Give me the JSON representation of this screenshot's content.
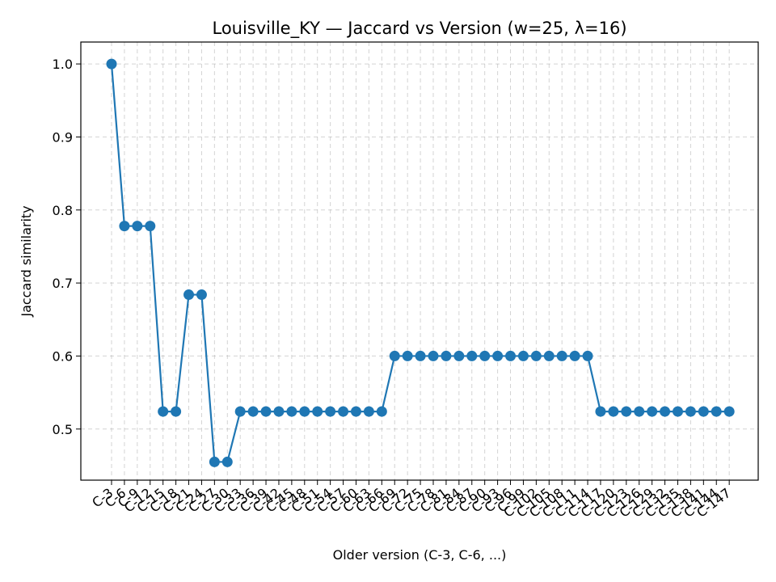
{
  "chart_data": {
    "type": "line",
    "title": "Louisville_KY — Jaccard vs Version (w=25, λ=16)",
    "xlabel": "Older version (C-3, C-6, ...)",
    "ylabel": "Jaccard similarity",
    "grid": true,
    "ylim": [
      0.43,
      1.03
    ],
    "yticks": [
      0.5,
      0.6,
      0.7,
      0.8,
      0.9,
      1.0
    ],
    "ytick_labels": [
      "0.5",
      "0.6",
      "0.7",
      "0.8",
      "0.9",
      "1.0"
    ],
    "color": "#1f77b4",
    "categories": [
      "C-3",
      "C-6",
      "C-9",
      "C-12",
      "C-15",
      "C-18",
      "C-21",
      "C-24",
      "C-27",
      "C-30",
      "C-33",
      "C-36",
      "C-39",
      "C-42",
      "C-45",
      "C-48",
      "C-51",
      "C-54",
      "C-57",
      "C-60",
      "C-63",
      "C-66",
      "C-69",
      "C-72",
      "C-75",
      "C-78",
      "C-81",
      "C-84",
      "C-87",
      "C-90",
      "C-93",
      "C-96",
      "C-99",
      "C-102",
      "C-105",
      "C-108",
      "C-111",
      "C-114",
      "C-117",
      "C-120",
      "C-123",
      "C-126",
      "C-129",
      "C-132",
      "C-135",
      "C-138",
      "C-141",
      "C-144",
      "C-147"
    ],
    "series": [
      {
        "values": [
          1.0,
          0.778,
          0.778,
          0.778,
          0.524,
          0.524,
          0.684,
          0.684,
          0.455,
          0.455,
          0.524,
          0.524,
          0.524,
          0.524,
          0.524,
          0.524,
          0.524,
          0.524,
          0.524,
          0.524,
          0.524,
          0.524,
          0.6,
          0.6,
          0.6,
          0.6,
          0.6,
          0.6,
          0.6,
          0.6,
          0.6,
          0.6,
          0.6,
          0.6,
          0.6,
          0.6,
          0.6,
          0.6,
          0.524,
          0.524,
          0.524,
          0.524,
          0.524,
          0.524,
          0.524,
          0.524,
          0.524,
          0.524,
          0.524
        ]
      }
    ]
  }
}
